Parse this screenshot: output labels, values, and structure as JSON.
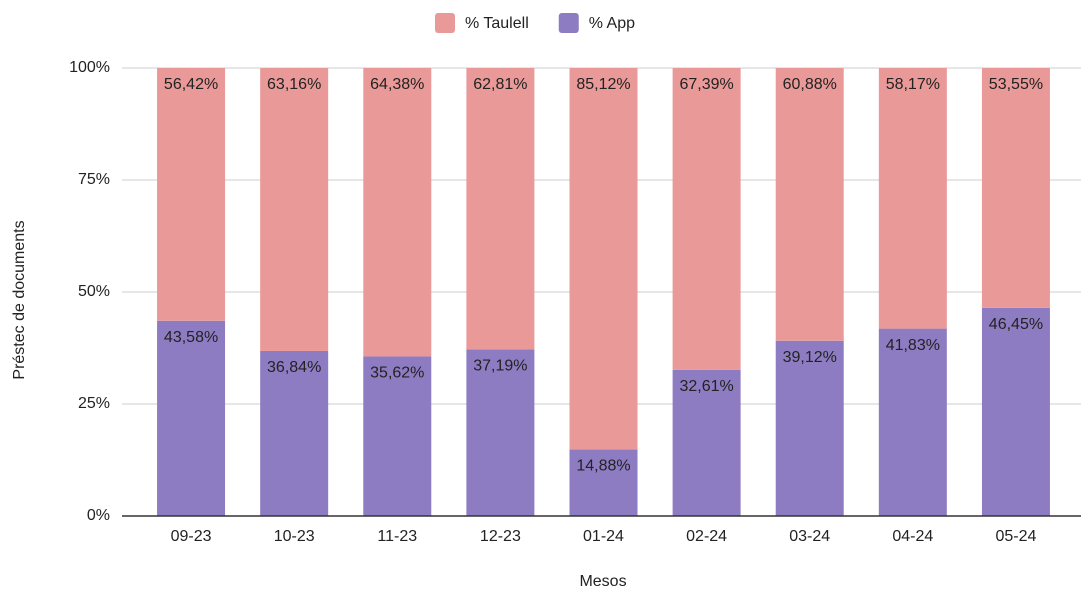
{
  "chart_data": {
    "type": "stacked_bar",
    "y_label": "Préstec de documents",
    "x_label": "Mesos",
    "categories": [
      "09-23",
      "10-23",
      "11-23",
      "12-23",
      "01-24",
      "02-24",
      "03-24",
      "04-24",
      "05-24"
    ],
    "series": [
      {
        "name": "% Taulell",
        "color": "#ea9999",
        "values": [
          56.42,
          63.16,
          64.38,
          62.81,
          85.12,
          67.39,
          60.88,
          58.17,
          53.55
        ],
        "value_labels": [
          "56,42%",
          "63,16%",
          "64,38%",
          "62,81%",
          "85,12%",
          "67,39%",
          "60,88%",
          "58,17%",
          "53,55%"
        ]
      },
      {
        "name": "% App",
        "color": "#8e7cc3",
        "values": [
          43.58,
          36.84,
          35.62,
          37.19,
          14.88,
          32.61,
          39.12,
          41.83,
          46.45
        ],
        "value_labels": [
          "43,58%",
          "36,84%",
          "35,62%",
          "37,19%",
          "14,88%",
          "32,61%",
          "39,12%",
          "41,83%",
          "46,45%"
        ]
      }
    ],
    "ylim": [
      0,
      100
    ],
    "yticks": [
      {
        "value": 0,
        "label": "0%"
      },
      {
        "value": 25,
        "label": "25%"
      },
      {
        "value": 50,
        "label": "50%"
      },
      {
        "value": 75,
        "label": "75%"
      },
      {
        "value": 100,
        "label": "100%"
      }
    ],
    "grid": true,
    "legend": "top"
  }
}
